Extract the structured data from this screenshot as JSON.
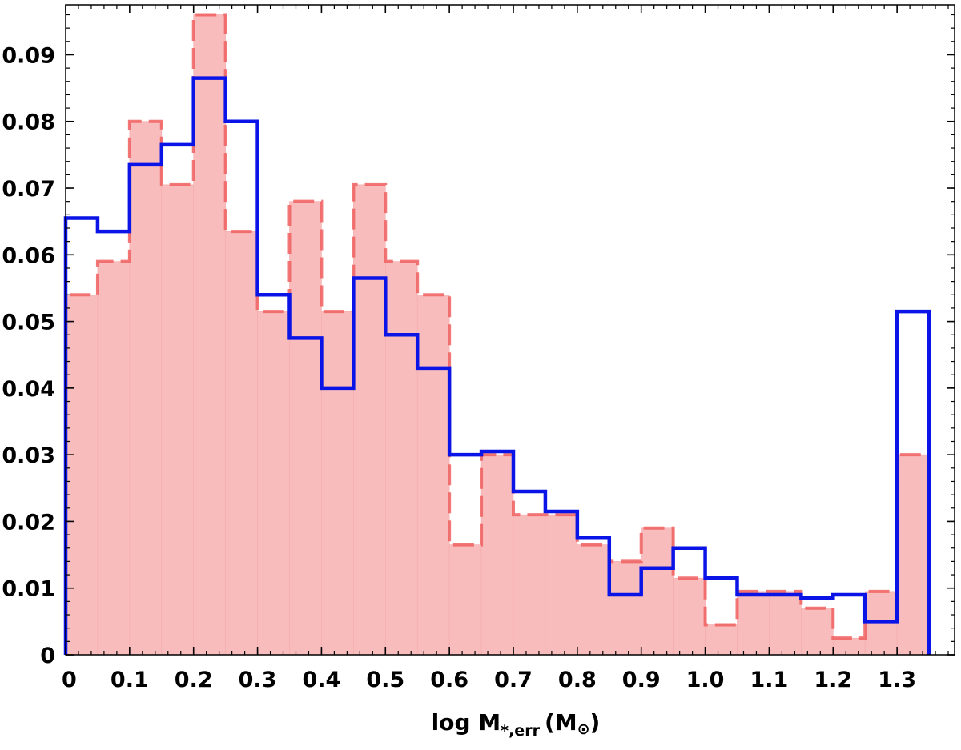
{
  "chart_data": {
    "type": "histogram",
    "xlabel": {
      "main": "log M",
      "subscript": "*,err",
      "unit_open": "(M",
      "unit_symbol": "⊙",
      "unit_close": ")"
    },
    "ylabel": "",
    "xlim": [
      0,
      1.39
    ],
    "ylim": [
      0,
      0.0975
    ],
    "grid": false,
    "bin_edges": [
      0,
      0.05,
      0.1,
      0.15,
      0.2,
      0.25,
      0.3,
      0.35,
      0.4,
      0.45,
      0.5,
      0.55,
      0.6,
      0.65,
      0.7,
      0.75,
      0.8,
      0.85,
      0.9,
      0.95,
      1.0,
      1.05,
      1.1,
      1.15,
      1.2,
      1.25,
      1.3,
      1.35
    ],
    "x_ticks": [
      "0",
      "0.1",
      "0.2",
      "0.3",
      "0.4",
      "0.5",
      "0.6",
      "0.7",
      "0.8",
      "0.9",
      "1.0",
      "1.1",
      "1.2",
      "1.3"
    ],
    "x_tick_values": [
      0,
      0.1,
      0.2,
      0.3,
      0.4,
      0.5,
      0.6,
      0.7,
      0.8,
      0.9,
      1.0,
      1.1,
      1.2,
      1.3
    ],
    "y_ticks": [
      "0",
      "0.01",
      "0.02",
      "0.03",
      "0.04",
      "0.05",
      "0.06",
      "0.07",
      "0.08",
      "0.09"
    ],
    "y_tick_values": [
      0,
      0.01,
      0.02,
      0.03,
      0.04,
      0.05,
      0.06,
      0.07,
      0.08,
      0.09
    ],
    "series": [
      {
        "style": "filled-dashed",
        "fill_color": "#f9bcbc",
        "line_color": "#f06060",
        "values": [
          0.054,
          0.059,
          0.08,
          0.0705,
          0.096,
          0.0635,
          0.0515,
          0.068,
          0.0515,
          0.0705,
          0.059,
          0.054,
          0.0165,
          0.03,
          0.021,
          0.021,
          0.0165,
          0.014,
          0.019,
          0.0115,
          0.0045,
          0.0095,
          0.0095,
          0.007,
          0.0025,
          0.0095,
          0.03
        ]
      },
      {
        "style": "step-solid",
        "line_color": "#0a14e6",
        "values": [
          0.0655,
          0.0635,
          0.0735,
          0.0765,
          0.0865,
          0.08,
          0.054,
          0.0475,
          0.04,
          0.0565,
          0.048,
          0.043,
          0.03,
          0.0305,
          0.0245,
          0.0215,
          0.0175,
          0.009,
          0.013,
          0.016,
          0.0115,
          0.009,
          0.009,
          0.0085,
          0.009,
          0.005,
          0.0515
        ]
      }
    ]
  }
}
